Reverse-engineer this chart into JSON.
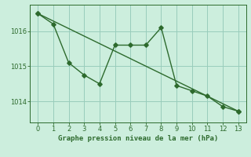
{
  "line1_x": [
    0,
    1,
    2,
    3,
    4,
    5,
    6,
    7,
    8,
    9,
    10,
    11,
    12,
    13
  ],
  "line1_y": [
    1016.5,
    1016.2,
    1015.1,
    1014.75,
    1014.5,
    1015.6,
    1015.6,
    1015.6,
    1016.1,
    1014.45,
    1014.3,
    1014.15,
    1013.85,
    1013.72
  ],
  "line2_x": [
    0,
    13
  ],
  "line2_y": [
    1016.5,
    1013.72
  ],
  "line_color": "#2d6a2d",
  "bg_color": "#cceedd",
  "grid_color": "#99ccbb",
  "xlabel": "Graphe pression niveau de la mer (hPa)",
  "xlabel_color": "#2d6a2d",
  "tick_color": "#2d6a2d",
  "axis_color": "#2d6a2d",
  "ylim": [
    1013.4,
    1016.75
  ],
  "xlim": [
    -0.5,
    13.5
  ],
  "yticks": [
    1014,
    1015,
    1016
  ],
  "xticks": [
    0,
    1,
    2,
    3,
    4,
    5,
    6,
    7,
    8,
    9,
    10,
    11,
    12,
    13
  ]
}
